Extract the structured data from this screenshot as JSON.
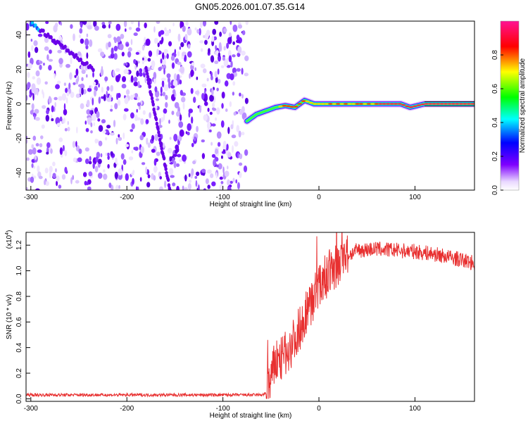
{
  "figure": {
    "title": "GN05.2026.001.07.35.G14"
  },
  "chart_data": [
    {
      "type": "heatmap",
      "xlabel": "Height of straight line (km)",
      "ylabel": "Frequency (Hz)",
      "xlim": [
        -305,
        162
      ],
      "ylim": [
        -50,
        48
      ],
      "xticks": [
        -300,
        -200,
        -100,
        0,
        100
      ],
      "yticks": [
        -40,
        -20,
        0,
        20,
        40
      ],
      "grid": false,
      "colorbar": {
        "label": "Normalized spectral amplitude",
        "range": [
          0,
          1
        ],
        "ticks": [
          "0.0",
          "0.2",
          "0.4",
          "0.6",
          "0.8"
        ],
        "colors": [
          "#ffffff",
          "#7f00ff",
          "#0000ff",
          "#00ffff",
          "#00ff00",
          "#ffff00",
          "#ff0000",
          "#ff00aa"
        ]
      },
      "noise_region_x": [
        -305,
        -75
      ],
      "ridge_trace": {
        "x": [
          -75,
          -65,
          -55,
          -45,
          -35,
          -25,
          -15,
          -5,
          10,
          30,
          60,
          85,
          95,
          110,
          162
        ],
        "freq": [
          -10,
          -6,
          -4,
          -2,
          -1,
          -2,
          2,
          0,
          0,
          0,
          0,
          0,
          -2,
          0,
          0
        ]
      },
      "noise_streaks": [
        {
          "x": [
            -300,
            -235
          ],
          "freq": [
            47,
            20
          ]
        },
        {
          "x": [
            -180,
            -155
          ],
          "freq": [
            20,
            -50
          ]
        }
      ]
    },
    {
      "type": "line",
      "xlabel": "Height of straight line (km)",
      "ylabel": "SNR (10 * v/v)",
      "y_multiplier_label": "(x10",
      "y_multiplier_exp": "4",
      "xlim": [
        -305,
        162
      ],
      "ylim": [
        -0.02,
        1.3
      ],
      "xticks": [
        -300,
        -200,
        -100,
        0,
        100
      ],
      "yticks": [
        "0.0",
        "0.2",
        "0.4",
        "0.6",
        "0.8",
        "1.0",
        "1.2"
      ],
      "grid": false,
      "series": [
        {
          "color": "#e83030",
          "x": [
            -305,
            -200,
            -100,
            -60,
            -55,
            -50,
            -45,
            -40,
            -35,
            -30,
            -25,
            -20,
            -15,
            -10,
            -5,
            0,
            10,
            20,
            30,
            40,
            60,
            80,
            100,
            120,
            140,
            162
          ],
          "values": [
            0.03,
            0.03,
            0.03,
            0.03,
            0.04,
            0.15,
            0.3,
            0.3,
            0.35,
            0.4,
            0.48,
            0.55,
            0.65,
            0.72,
            0.8,
            0.88,
            0.98,
            1.05,
            1.12,
            1.16,
            1.17,
            1.16,
            1.15,
            1.13,
            1.1,
            1.06
          ]
        }
      ]
    }
  ]
}
